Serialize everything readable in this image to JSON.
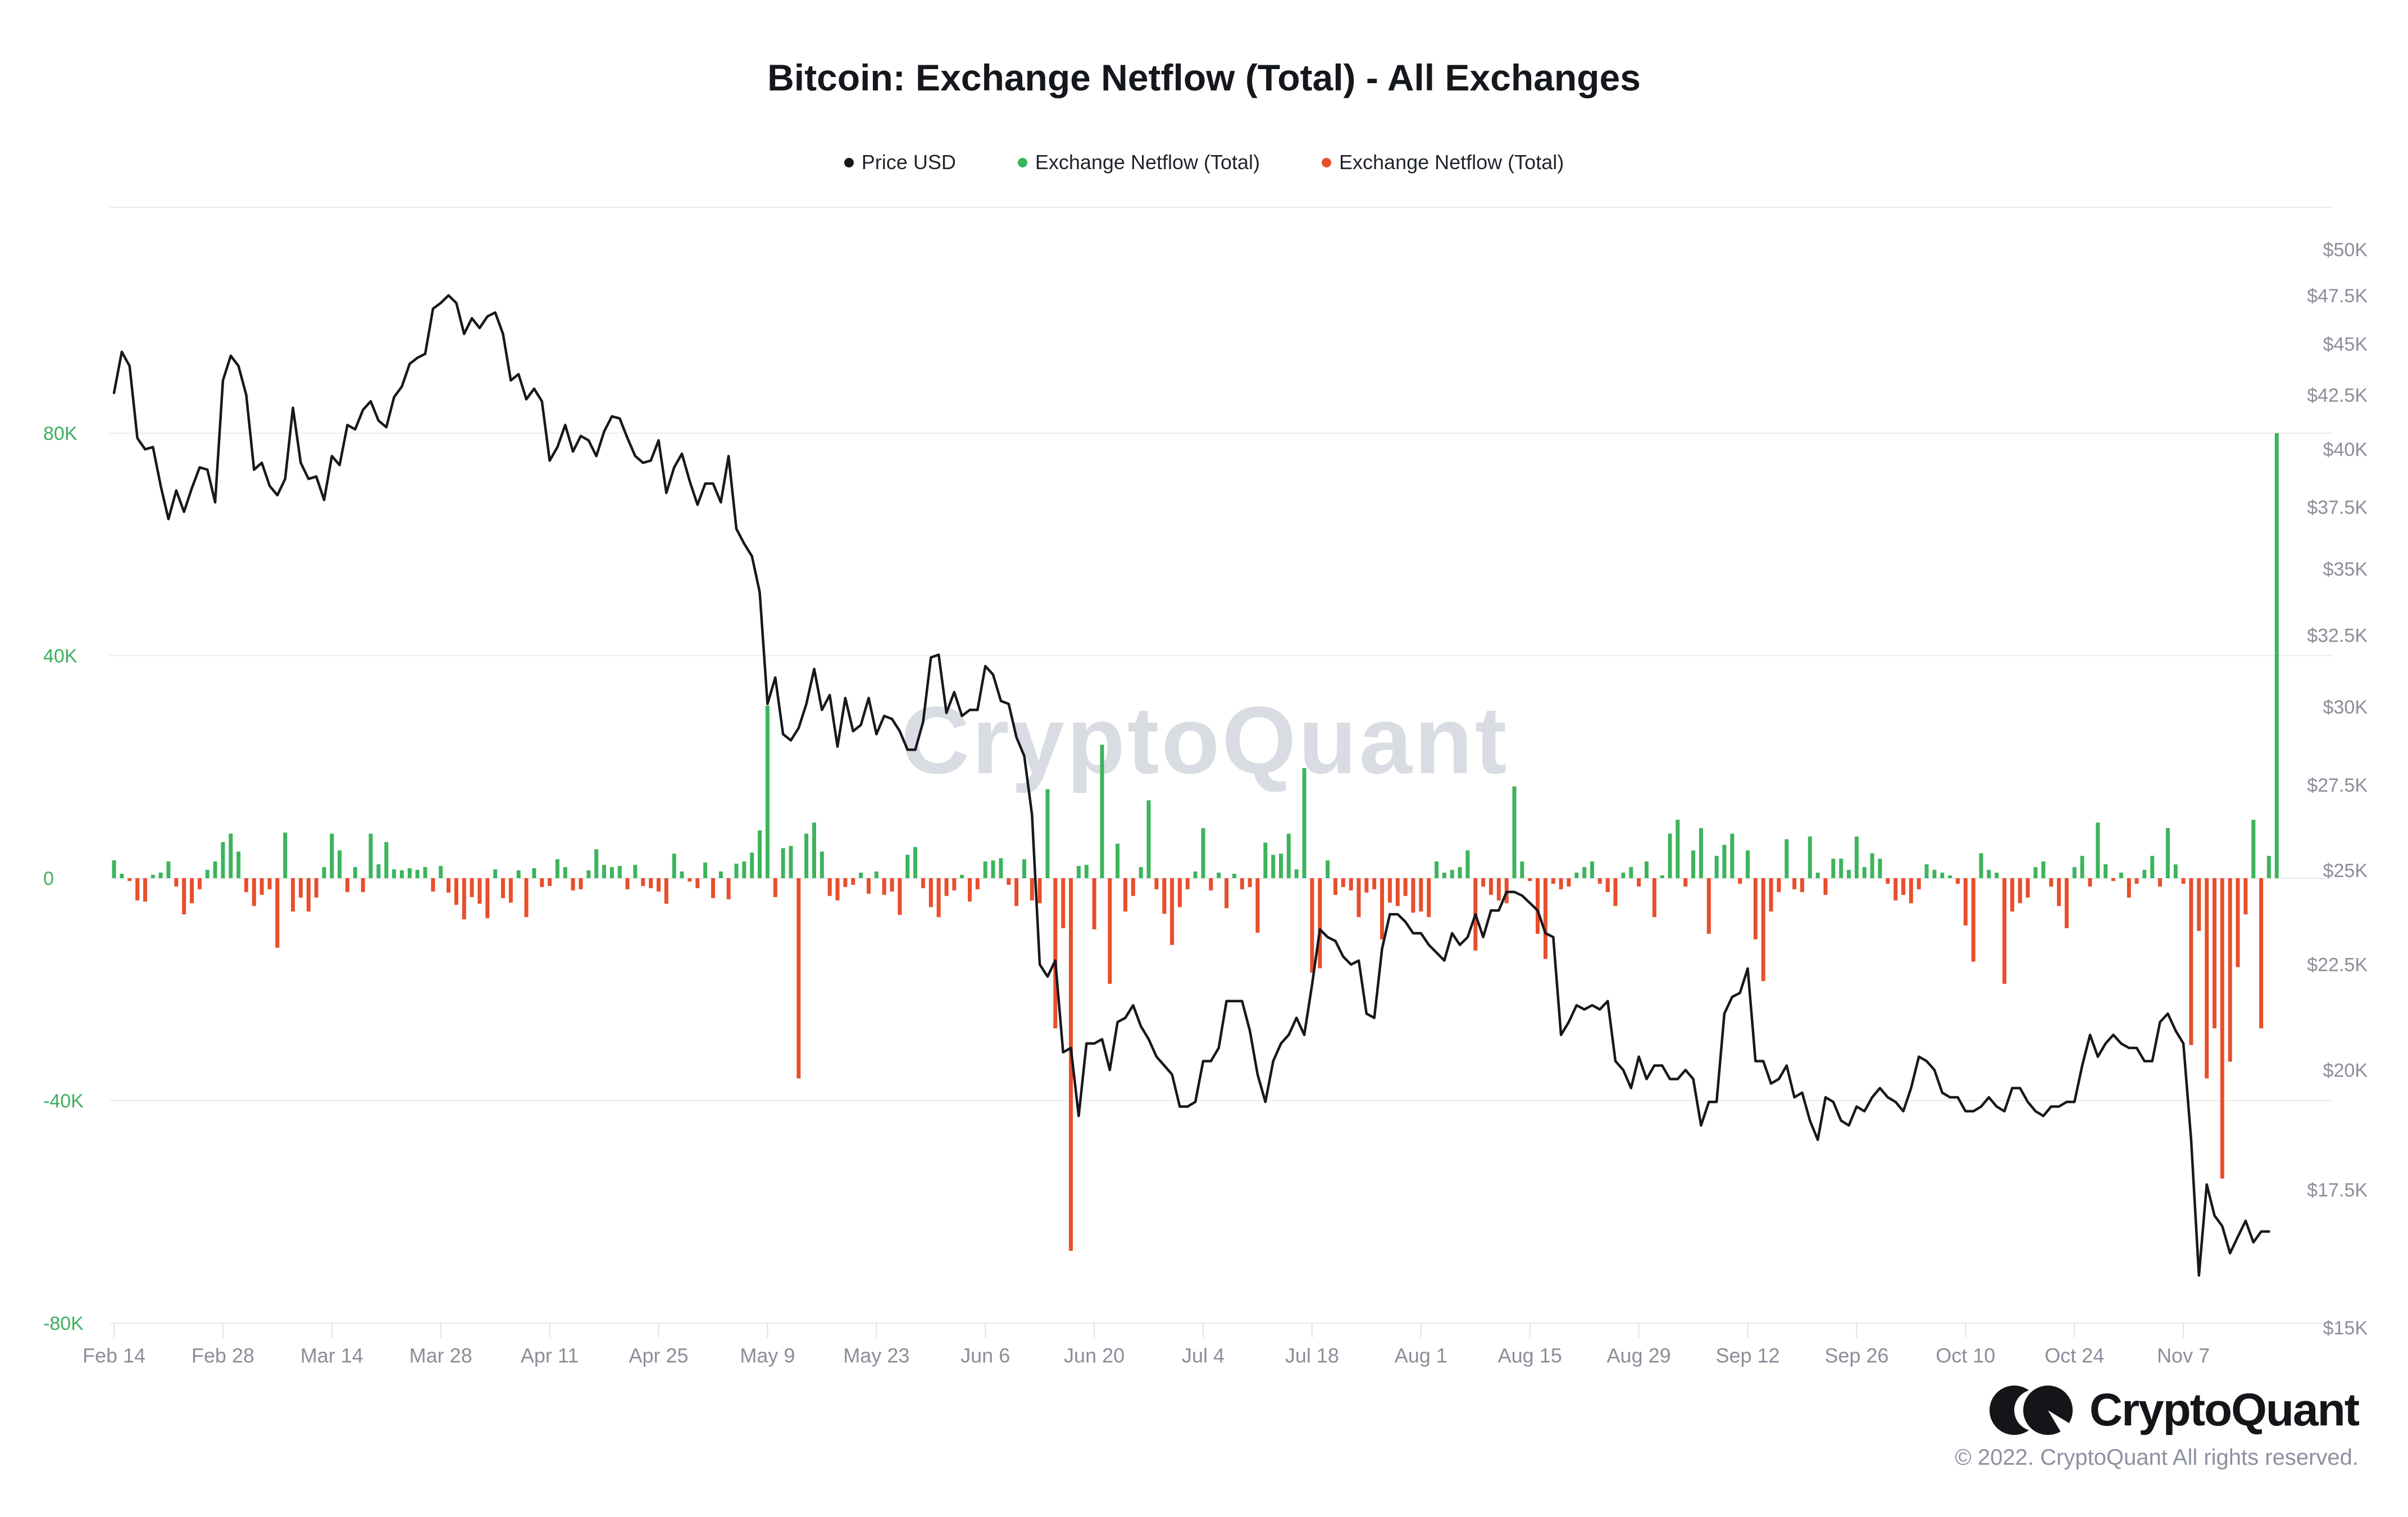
{
  "page": {
    "title": "Bitcoin: Exchange Netflow (Total) - All Exchanges"
  },
  "legend": {
    "items": [
      {
        "label": "Price USD",
        "color": "#17181c"
      },
      {
        "label": "Exchange Netflow (Total)",
        "color": "#3cb45c"
      },
      {
        "label": "Exchange Netflow (Total)",
        "color": "#e94e2b"
      }
    ]
  },
  "watermark": {
    "text": "CryptoQuant"
  },
  "footer": {
    "brand": "CryptoQuant",
    "copyright": "© 2022. CryptoQuant All rights reserved."
  },
  "chart_data": {
    "type": [
      "line",
      "bar"
    ],
    "title": "Bitcoin: Exchange Netflow (Total) - All Exchanges",
    "x_start_label": "Feb 14",
    "x_tick_interval_days": 14,
    "x_tick_labels": [
      "Feb 14",
      "Feb 28",
      "Mar 14",
      "Mar 28",
      "Apr 11",
      "Apr 25",
      "May 9",
      "May 23",
      "Jun 6",
      "Jun 20",
      "Jul 4",
      "Jul 18",
      "Aug 1",
      "Aug 15",
      "Aug 29",
      "Sep 12",
      "Sep 26",
      "Oct 10",
      "Oct 24",
      "Nov 7"
    ],
    "left_axis": {
      "series": "Exchange Netflow (Total)",
      "unit": "K BTC",
      "ticks": [
        "80K",
        "40K",
        "0",
        "-40K",
        "-80K"
      ],
      "values": [
        80,
        40,
        0,
        -40,
        -80
      ],
      "ylim": [
        -80,
        80
      ]
    },
    "right_axis": {
      "series": "Price USD",
      "scale": "log",
      "unit": "USD",
      "ticks": [
        "$50K",
        "$47.5K",
        "$45K",
        "$42.5K",
        "$40K",
        "$37.5K",
        "$35K",
        "$32.5K",
        "$30K",
        "$27.5K",
        "$25K",
        "$22.5K",
        "$20K",
        "$17.5K",
        "$15K"
      ],
      "values": [
        50,
        47.5,
        45,
        42.5,
        40,
        37.5,
        35,
        32.5,
        30,
        27.5,
        25,
        22.5,
        20,
        17.5,
        15
      ],
      "ylim": [
        15,
        50
      ]
    },
    "grid": true,
    "legend_position": "top",
    "colors": {
      "grid": "#ebebec",
      "left_axis_text": "#3fae5e",
      "axis_text": "#8b8e99",
      "price": "#17181c",
      "inflow": "#3cb45c",
      "outflow": "#e94e2b",
      "watermark": "#dadce3"
    },
    "series": [
      {
        "name": "Price USD",
        "type": "line",
        "color": "#17181c",
        "unit": "K USD",
        "values": [
          42.6,
          44.6,
          43.9,
          40.5,
          40.0,
          40.1,
          38.4,
          37.0,
          38.2,
          37.3,
          38.3,
          39.2,
          39.1,
          37.7,
          43.2,
          44.4,
          43.9,
          42.5,
          39.1,
          39.4,
          38.4,
          38.0,
          38.7,
          41.9,
          39.4,
          38.7,
          38.8,
          37.8,
          39.7,
          39.3,
          41.1,
          40.9,
          41.8,
          42.2,
          41.3,
          41.0,
          42.4,
          42.9,
          44.0,
          44.3,
          44.5,
          46.8,
          47.1,
          47.5,
          47.1,
          45.5,
          46.3,
          45.8,
          46.4,
          46.6,
          45.5,
          43.2,
          43.5,
          42.3,
          42.8,
          42.2,
          39.5,
          40.1,
          41.1,
          39.9,
          40.6,
          40.4,
          39.7,
          40.8,
          41.5,
          41.4,
          40.5,
          39.7,
          39.4,
          39.5,
          40.4,
          38.1,
          39.2,
          39.8,
          38.6,
          37.6,
          38.5,
          38.5,
          37.7,
          39.7,
          36.6,
          36.0,
          35.5,
          34.1,
          30.1,
          31.0,
          29.1,
          28.9,
          29.3,
          30.1,
          31.3,
          29.9,
          30.4,
          28.7,
          30.3,
          29.2,
          29.4,
          30.3,
          29.1,
          29.7,
          29.6,
          29.2,
          28.6,
          28.6,
          29.5,
          31.7,
          31.8,
          29.8,
          30.5,
          29.7,
          29.9,
          29.9,
          31.4,
          31.1,
          30.2,
          30.1,
          29.0,
          28.4,
          26.6,
          22.5,
          22.2,
          22.6,
          20.4,
          20.5,
          19.0,
          20.6,
          20.6,
          20.7,
          20.0,
          21.1,
          21.2,
          21.5,
          21.0,
          20.7,
          20.3,
          20.1,
          19.9,
          19.2,
          19.2,
          19.3,
          20.2,
          20.2,
          20.5,
          21.6,
          21.6,
          21.6,
          20.9,
          19.9,
          19.3,
          20.2,
          20.6,
          20.8,
          21.2,
          20.8,
          22.0,
          23.4,
          23.2,
          23.1,
          22.7,
          22.5,
          22.6,
          21.3,
          21.2,
          22.9,
          23.8,
          23.8,
          23.6,
          23.3,
          23.3,
          23.0,
          22.8,
          22.6,
          23.3,
          23.0,
          23.2,
          23.8,
          23.2,
          23.9,
          23.9,
          24.4,
          24.4,
          24.3,
          24.1,
          23.9,
          23.3,
          23.2,
          20.8,
          21.1,
          21.5,
          21.4,
          21.5,
          21.4,
          21.6,
          20.2,
          20.0,
          19.6,
          20.3,
          19.8,
          20.1,
          20.1,
          19.8,
          19.8,
          20.0,
          19.8,
          18.8,
          19.3,
          19.3,
          21.3,
          21.7,
          21.8,
          22.4,
          20.2,
          20.2,
          19.7,
          19.8,
          20.1,
          19.4,
          19.5,
          18.9,
          18.5,
          19.4,
          19.3,
          18.9,
          18.8,
          19.2,
          19.1,
          19.4,
          19.6,
          19.4,
          19.3,
          19.1,
          19.6,
          20.3,
          20.2,
          20.0,
          19.5,
          19.4,
          19.4,
          19.1,
          19.1,
          19.2,
          19.4,
          19.2,
          19.1,
          19.6,
          19.6,
          19.3,
          19.1,
          19.0,
          19.2,
          19.2,
          19.3,
          19.3,
          20.1,
          20.8,
          20.3,
          20.6,
          20.8,
          20.6,
          20.5,
          20.5,
          20.2,
          20.2,
          21.1,
          21.3,
          20.9,
          20.6,
          18.5,
          15.9,
          17.6,
          17.0,
          16.8,
          16.3,
          16.6,
          16.9,
          16.5,
          16.7,
          16.7
        ]
      },
      {
        "name": "Exchange Netflow (Total)",
        "type": "bar",
        "color_positive": "#3cb45c",
        "color_negative": "#e94e2b",
        "unit": "K BTC",
        "values": [
          3.2,
          0.8,
          -0.5,
          -4.0,
          -4.2,
          0.6,
          1.0,
          3.0,
          -1.5,
          -6.5,
          -4.5,
          -2.0,
          1.5,
          3.0,
          6.5,
          8.0,
          4.8,
          -2.5,
          -5.0,
          -3.0,
          -2.0,
          -12.5,
          8.2,
          -6.0,
          -3.5,
          -6.0,
          -3.5,
          2.0,
          8.0,
          5.0,
          -2.5,
          2.0,
          -2.5,
          8.0,
          2.5,
          6.5,
          1.6,
          1.4,
          1.8,
          1.5,
          2.0,
          -2.4,
          2.2,
          -2.6,
          -4.8,
          -7.4,
          -3.4,
          -4.6,
          -7.2,
          1.6,
          -3.6,
          -4.4,
          1.4,
          -7.0,
          1.8,
          -1.6,
          -1.4,
          3.4,
          2.0,
          -2.2,
          -2.0,
          1.4,
          5.2,
          2.4,
          2.0,
          2.2,
          -2.0,
          2.4,
          -1.4,
          -1.8,
          -2.4,
          -4.6,
          4.4,
          1.2,
          -0.6,
          -1.8,
          2.8,
          -3.6,
          1.2,
          -3.8,
          2.6,
          3.0,
          4.6,
          8.6,
          31.0,
          -3.4,
          5.4,
          5.8,
          -36.0,
          8.0,
          10.0,
          4.8,
          -3.2,
          -4.0,
          -1.6,
          -1.2,
          1.0,
          -2.8,
          1.2,
          -3.0,
          -2.4,
          -6.6,
          4.2,
          5.6,
          -1.8,
          -5.2,
          -7.0,
          -3.2,
          -2.2,
          0.6,
          -4.2,
          -2.0,
          3.0,
          3.2,
          3.6,
          -1.2,
          -5.0,
          3.4,
          -4.0,
          -4.5,
          16.0,
          -27.0,
          -9.0,
          -67.0,
          2.2,
          2.4,
          -9.2,
          24.0,
          -19.0,
          6.2,
          -6.0,
          -3.2,
          2.0,
          14.0,
          -2.0,
          -6.4,
          -12.0,
          -5.2,
          -2.0,
          1.2,
          9.0,
          -2.2,
          1.0,
          -5.4,
          0.8,
          -2.0,
          -1.6,
          -9.8,
          6.4,
          4.2,
          4.4,
          8.0,
          1.6,
          19.8,
          -17.0,
          -16.2,
          3.2,
          -3.0,
          -1.6,
          -2.2,
          -7.0,
          -2.6,
          -2.0,
          -11.0,
          -4.4,
          -5.0,
          -3.2,
          -6.2,
          -6.0,
          -7.0,
          3.0,
          1.0,
          1.5,
          2.0,
          5.0,
          -13.0,
          -1.5,
          -3.0,
          -4.0,
          -4.5,
          16.5,
          3.0,
          -0.5,
          -10.0,
          -14.5,
          -1.0,
          -2.0,
          -1.5,
          1.0,
          2.0,
          3.0,
          -1.0,
          -2.5,
          -5.0,
          1.0,
          2.0,
          -1.5,
          3.0,
          -7.0,
          0.5,
          8.0,
          10.5,
          -1.5,
          5.0,
          9.0,
          -10.0,
          4.0,
          6.0,
          8.0,
          -1.0,
          5.0,
          -11.0,
          -18.5,
          -6.0,
          -2.5,
          7.0,
          -2.0,
          -2.5,
          7.5,
          1.0,
          -3.0,
          3.5,
          3.5,
          1.5,
          7.5,
          2.0,
          4.5,
          3.5,
          -1.0,
          -4.0,
          -3.0,
          -4.5,
          -2.0,
          2.5,
          1.5,
          1.0,
          0.5,
          -1.0,
          -8.5,
          -15.0,
          4.5,
          1.5,
          1.0,
          -19.0,
          -6.0,
          -4.5,
          -3.5,
          2.0,
          3.0,
          -1.5,
          -5.0,
          -9.0,
          2.0,
          4.0,
          -1.5,
          10.0,
          2.5,
          -0.5,
          1.0,
          -3.5,
          -1.0,
          1.5,
          4.0,
          -1.5,
          9.0,
          2.5,
          -1.0,
          -30.0,
          -9.5,
          -36.0,
          -27.0,
          -54.0,
          -33.0,
          -16.0,
          -6.5,
          10.5,
          -27.0,
          4.0,
          80.0
        ]
      }
    ]
  }
}
